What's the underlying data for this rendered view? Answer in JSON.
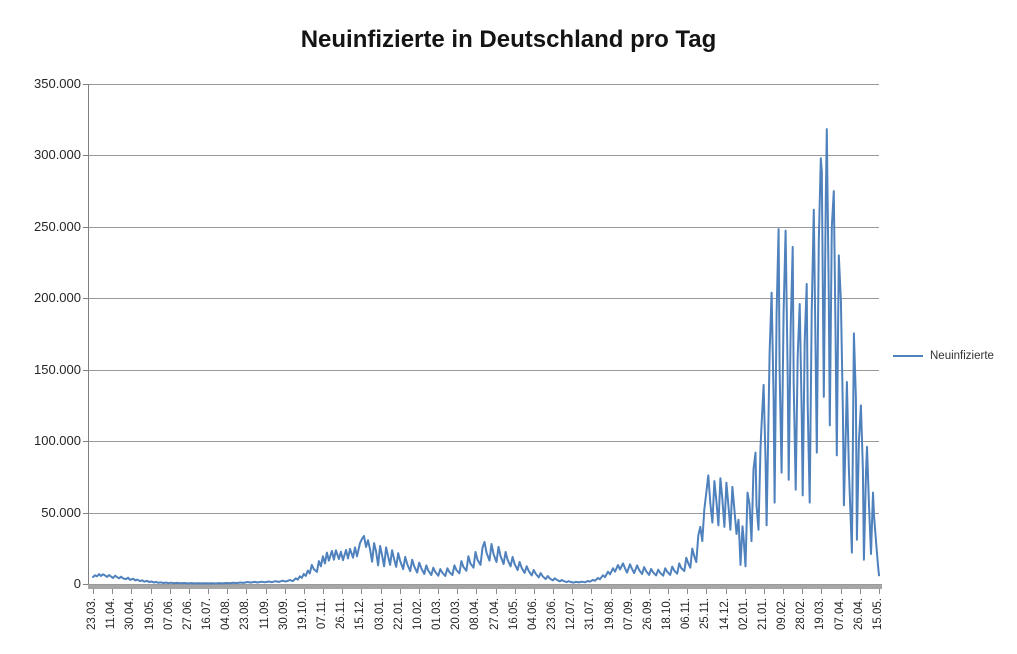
{
  "title": "Neuinfizierte in Deutschland pro Tag",
  "colors": {
    "series_line": "#4F81BD",
    "gridline": "#9a9a9a",
    "axis": "#808080",
    "baseline_bar": "#a6a6a6",
    "text": "#262626"
  },
  "legend": {
    "position": "right",
    "series_label": "Neuinfizierte"
  },
  "chart_data": {
    "type": "line",
    "title": "Neuinfizierte in Deutschland pro Tag",
    "series_name": "Neuinfizierte",
    "xlabel": "",
    "ylabel": "",
    "ylim": [
      0,
      350000
    ],
    "grid": true,
    "grid_interval": 50000,
    "legend_position": "right",
    "y_ticks": [
      {
        "label": "0",
        "value": 0
      },
      {
        "label": "50.000",
        "value": 50000
      },
      {
        "label": "100.000",
        "value": 100000
      },
      {
        "label": "150.000",
        "value": 150000
      },
      {
        "label": "200.000",
        "value": 200000
      },
      {
        "label": "250.000",
        "value": 250000
      },
      {
        "label": "300.000",
        "value": 300000
      },
      {
        "label": "350.000",
        "value": 350000
      }
    ],
    "x_tick_labels": [
      "23.03.",
      "11.04.",
      "30.04.",
      "19.05.",
      "07.06.",
      "27.06.",
      "16.07.",
      "04.08.",
      "23.08.",
      "11.09.",
      "30.09.",
      "19.10.",
      "07.11.",
      "26.11.",
      "15.12.",
      "03.01.",
      "22.01.",
      "10.02.",
      "01.03.",
      "20.03.",
      "08.04.",
      "27.04.",
      "16.05.",
      "04.06.",
      "23.06.",
      "12.07.",
      "31.07.",
      "19.08.",
      "07.09.",
      "26.09.",
      "18.10.",
      "06.11.",
      "25.11.",
      "14.12.",
      "02.01.",
      "21.01.",
      "09.02.",
      "28.02.",
      "19.03.",
      "07.04.",
      "26.04.",
      "15.05."
    ],
    "x_unit": "day-index from first tick (23.03.), daily reported values",
    "points": [
      [
        0,
        4900
      ],
      [
        2,
        6100
      ],
      [
        4,
        5300
      ],
      [
        6,
        6900
      ],
      [
        8,
        5600
      ],
      [
        10,
        6800
      ],
      [
        12,
        6000
      ],
      [
        14,
        5000
      ],
      [
        16,
        6300
      ],
      [
        18,
        5200
      ],
      [
        20,
        4200
      ],
      [
        22,
        5800
      ],
      [
        24,
        4800
      ],
      [
        26,
        4000
      ],
      [
        28,
        5100
      ],
      [
        30,
        3900
      ],
      [
        33,
        3400
      ],
      [
        35,
        4400
      ],
      [
        37,
        2900
      ],
      [
        40,
        3700
      ],
      [
        42,
        2500
      ],
      [
        44,
        3100
      ],
      [
        47,
        2000
      ],
      [
        49,
        2600
      ],
      [
        51,
        1700
      ],
      [
        54,
        2200
      ],
      [
        56,
        1350
      ],
      [
        58,
        1750
      ],
      [
        61,
        1050
      ],
      [
        63,
        1450
      ],
      [
        65,
        850
      ],
      [
        68,
        1150
      ],
      [
        70,
        720
      ],
      [
        73,
        980
      ],
      [
        75,
        580
      ],
      [
        78,
        880
      ],
      [
        80,
        530
      ],
      [
        84,
        780
      ],
      [
        87,
        480
      ],
      [
        91,
        680
      ],
      [
        94,
        440
      ],
      [
        98,
        640
      ],
      [
        101,
        390
      ],
      [
        105,
        590
      ],
      [
        108,
        410
      ],
      [
        112,
        570
      ],
      [
        115,
        390
      ],
      [
        119,
        550
      ],
      [
        122,
        370
      ],
      [
        126,
        620
      ],
      [
        129,
        440
      ],
      [
        133,
        690
      ],
      [
        136,
        490
      ],
      [
        140,
        880
      ],
      [
        143,
        640
      ],
      [
        147,
        1080
      ],
      [
        150,
        780
      ],
      [
        154,
        1380
      ],
      [
        157,
        980
      ],
      [
        161,
        1480
      ],
      [
        164,
        1080
      ],
      [
        168,
        1580
      ],
      [
        171,
        1180
      ],
      [
        175,
        1780
      ],
      [
        178,
        1280
      ],
      [
        182,
        1980
      ],
      [
        185,
        1480
      ],
      [
        189,
        2280
      ],
      [
        192,
        1680
      ],
      [
        196,
        2760
      ],
      [
        199,
        2060
      ],
      [
        202,
        4000
      ],
      [
        204,
        3100
      ],
      [
        206,
        5400
      ],
      [
        208,
        4300
      ],
      [
        210,
        7100
      ],
      [
        212,
        5700
      ],
      [
        214,
        9400
      ],
      [
        216,
        7400
      ],
      [
        218,
        13400
      ],
      [
        220,
        10400
      ],
      [
        223,
        8500
      ],
      [
        225,
        16000
      ],
      [
        227,
        12400
      ],
      [
        229,
        19400
      ],
      [
        231,
        14400
      ],
      [
        233,
        22000
      ],
      [
        235,
        16400
      ],
      [
        238,
        23200
      ],
      [
        240,
        17000
      ],
      [
        242,
        23600
      ],
      [
        245,
        17400
      ],
      [
        247,
        22600
      ],
      [
        249,
        16700
      ],
      [
        252,
        23800
      ],
      [
        254,
        17900
      ],
      [
        256,
        24600
      ],
      [
        259,
        18400
      ],
      [
        261,
        25600
      ],
      [
        263,
        19400
      ],
      [
        266,
        28600
      ],
      [
        268,
        31600
      ],
      [
        270,
        33600
      ],
      [
        272,
        26000
      ],
      [
        274,
        30600
      ],
      [
        276,
        24000
      ],
      [
        278,
        15600
      ],
      [
        280,
        28600
      ],
      [
        282,
        22600
      ],
      [
        284,
        13000
      ],
      [
        286,
        26600
      ],
      [
        288,
        20000
      ],
      [
        290,
        12400
      ],
      [
        292,
        25600
      ],
      [
        294,
        19400
      ],
      [
        296,
        13400
      ],
      [
        298,
        23600
      ],
      [
        300,
        17400
      ],
      [
        302,
        12000
      ],
      [
        304,
        21600
      ],
      [
        306,
        16000
      ],
      [
        309,
        10400
      ],
      [
        311,
        19000
      ],
      [
        313,
        14000
      ],
      [
        316,
        9000
      ],
      [
        318,
        17000
      ],
      [
        320,
        12400
      ],
      [
        323,
        8000
      ],
      [
        325,
        15000
      ],
      [
        327,
        11000
      ],
      [
        330,
        7000
      ],
      [
        332,
        13000
      ],
      [
        334,
        9400
      ],
      [
        337,
        6200
      ],
      [
        339,
        11400
      ],
      [
        341,
        8400
      ],
      [
        344,
        5800
      ],
      [
        346,
        10400
      ],
      [
        348,
        7900
      ],
      [
        351,
        5600
      ],
      [
        353,
        11000
      ],
      [
        355,
        8300
      ],
      [
        358,
        6300
      ],
      [
        360,
        13000
      ],
      [
        362,
        9800
      ],
      [
        365,
        7500
      ],
      [
        367,
        16000
      ],
      [
        369,
        12000
      ],
      [
        372,
        9300
      ],
      [
        374,
        19400
      ],
      [
        376,
        14400
      ],
      [
        379,
        11400
      ],
      [
        381,
        22400
      ],
      [
        383,
        17000
      ],
      [
        386,
        13400
      ],
      [
        388,
        25400
      ],
      [
        390,
        29400
      ],
      [
        392,
        22000
      ],
      [
        395,
        16400
      ],
      [
        397,
        28000
      ],
      [
        399,
        21000
      ],
      [
        402,
        15400
      ],
      [
        404,
        26000
      ],
      [
        406,
        19400
      ],
      [
        409,
        14000
      ],
      [
        411,
        22400
      ],
      [
        413,
        17000
      ],
      [
        416,
        12400
      ],
      [
        418,
        19000
      ],
      [
        420,
        14000
      ],
      [
        423,
        9800
      ],
      [
        425,
        15400
      ],
      [
        427,
        11400
      ],
      [
        430,
        7800
      ],
      [
        432,
        12400
      ],
      [
        434,
        9200
      ],
      [
        437,
        6000
      ],
      [
        439,
        9800
      ],
      [
        441,
        7200
      ],
      [
        444,
        4600
      ],
      [
        446,
        7600
      ],
      [
        448,
        5400
      ],
      [
        451,
        3400
      ],
      [
        453,
        5600
      ],
      [
        455,
        4000
      ],
      [
        458,
        2500
      ],
      [
        460,
        4000
      ],
      [
        462,
        2900
      ],
      [
        465,
        1800
      ],
      [
        467,
        2800
      ],
      [
        469,
        2000
      ],
      [
        472,
        1300
      ],
      [
        474,
        2000
      ],
      [
        476,
        1400
      ],
      [
        479,
        1000
      ],
      [
        481,
        1500
      ],
      [
        484,
        1100
      ],
      [
        487,
        1600
      ],
      [
        490,
        1200
      ],
      [
        493,
        2100
      ],
      [
        495,
        1600
      ],
      [
        498,
        2900
      ],
      [
        500,
        2300
      ],
      [
        503,
        4200
      ],
      [
        505,
        3300
      ],
      [
        508,
        6100
      ],
      [
        510,
        4800
      ],
      [
        513,
        8600
      ],
      [
        515,
        6800
      ],
      [
        518,
        11000
      ],
      [
        520,
        8600
      ],
      [
        523,
        13200
      ],
      [
        525,
        10200
      ],
      [
        528,
        14400
      ],
      [
        530,
        11000
      ],
      [
        532,
        8000
      ],
      [
        535,
        13800
      ],
      [
        537,
        10400
      ],
      [
        539,
        7600
      ],
      [
        542,
        13000
      ],
      [
        544,
        9800
      ],
      [
        547,
        7000
      ],
      [
        549,
        11800
      ],
      [
        551,
        9000
      ],
      [
        554,
        6400
      ],
      [
        556,
        10600
      ],
      [
        558,
        8200
      ],
      [
        561,
        6000
      ],
      [
        563,
        10000
      ],
      [
        565,
        7800
      ],
      [
        568,
        5800
      ],
      [
        570,
        11000
      ],
      [
        572,
        8600
      ],
      [
        575,
        6400
      ],
      [
        577,
        12200
      ],
      [
        579,
        9400
      ],
      [
        582,
        7200
      ],
      [
        584,
        14400
      ],
      [
        586,
        11200
      ],
      [
        589,
        9000
      ],
      [
        591,
        18400
      ],
      [
        593,
        14400
      ],
      [
        595,
        11400
      ],
      [
        597,
        24800
      ],
      [
        599,
        19400
      ],
      [
        601,
        15400
      ],
      [
        603,
        34000
      ],
      [
        605,
        40000
      ],
      [
        607,
        30000
      ],
      [
        609,
        52000
      ],
      [
        611,
        64000
      ],
      [
        613,
        76000
      ],
      [
        615,
        56000
      ],
      [
        617,
        43000
      ],
      [
        619,
        72000
      ],
      [
        621,
        58000
      ],
      [
        623,
        41000
      ],
      [
        625,
        74000
      ],
      [
        627,
        59000
      ],
      [
        629,
        40000
      ],
      [
        631,
        71000
      ],
      [
        633,
        55000
      ],
      [
        635,
        38000
      ],
      [
        637,
        68000
      ],
      [
        639,
        52000
      ],
      [
        641,
        35000
      ],
      [
        643,
        45000
      ],
      [
        644,
        30000
      ],
      [
        645,
        13400
      ],
      [
        647,
        40400
      ],
      [
        648,
        33000
      ],
      [
        650,
        12400
      ],
      [
        652,
        64000
      ],
      [
        654,
        56000
      ],
      [
        656,
        30000
      ],
      [
        658,
        80400
      ],
      [
        660,
        92000
      ],
      [
        661,
        55000
      ],
      [
        663,
        38000
      ],
      [
        665,
        95000
      ],
      [
        666,
        112000
      ],
      [
        668,
        139400
      ],
      [
        670,
        85000
      ],
      [
        671,
        41000
      ],
      [
        673,
        120000
      ],
      [
        674,
        162000
      ],
      [
        676,
        204000
      ],
      [
        678,
        130000
      ],
      [
        679,
        57000
      ],
      [
        681,
        190000
      ],
      [
        683,
        248400
      ],
      [
        684,
        150000
      ],
      [
        686,
        78000
      ],
      [
        688,
        190000
      ],
      [
        690,
        247400
      ],
      [
        692,
        145000
      ],
      [
        693,
        73000
      ],
      [
        695,
        180000
      ],
      [
        697,
        236000
      ],
      [
        698,
        140000
      ],
      [
        700,
        66000
      ],
      [
        702,
        160000
      ],
      [
        704,
        196000
      ],
      [
        706,
        120000
      ],
      [
        707,
        62000
      ],
      [
        709,
        170000
      ],
      [
        711,
        210000
      ],
      [
        712,
        125000
      ],
      [
        714,
        57000
      ],
      [
        716,
        190000
      ],
      [
        718,
        262000
      ],
      [
        720,
        150000
      ],
      [
        721,
        92000
      ],
      [
        723,
        240000
      ],
      [
        725,
        298000
      ],
      [
        726,
        289000
      ],
      [
        728,
        131000
      ],
      [
        730,
        270000
      ],
      [
        731,
        318400
      ],
      [
        733,
        200000
      ],
      [
        734,
        111000
      ],
      [
        736,
        250000
      ],
      [
        738,
        275000
      ],
      [
        740,
        160000
      ],
      [
        741,
        90000
      ],
      [
        743,
        230000
      ],
      [
        745,
        198400
      ],
      [
        747,
        120000
      ],
      [
        748,
        55000
      ],
      [
        750,
        110000
      ],
      [
        751,
        141400
      ],
      [
        753,
        80000
      ],
      [
        755,
        41000
      ],
      [
        756,
        22000
      ],
      [
        758,
        175400
      ],
      [
        760,
        130000
      ],
      [
        761,
        31000
      ],
      [
        763,
        100000
      ],
      [
        765,
        125000
      ],
      [
        767,
        80000
      ],
      [
        768,
        17000
      ],
      [
        770,
        78000
      ],
      [
        771,
        96000
      ],
      [
        773,
        55000
      ],
      [
        775,
        21000
      ],
      [
        777,
        64000
      ],
      [
        778,
        48000
      ],
      [
        780,
        30000
      ],
      [
        782,
        13000
      ],
      [
        783,
        6000
      ]
    ]
  }
}
